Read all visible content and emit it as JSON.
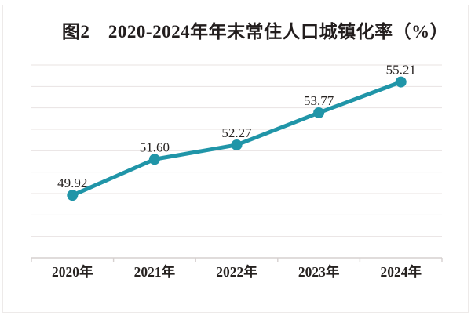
{
  "chart_data": {
    "type": "line",
    "title": "图2　2020-2024年年末常住人口城镇化率（%）",
    "categories": [
      "2020年",
      "2021年",
      "2022年",
      "2023年",
      "2024年"
    ],
    "values": [
      49.92,
      51.6,
      52.27,
      53.77,
      55.21
    ],
    "data_labels": [
      "49.92",
      "51.60",
      "52.27",
      "53.77",
      "55.21"
    ],
    "xlabel": "",
    "ylabel": "",
    "ylim": [
      47,
      56
    ],
    "y_grid_step": 1,
    "grid": "horizontal",
    "y_tick_labels_visible": false,
    "legend": false,
    "colors": {
      "line": "#2095A8",
      "marker": "#2095A8",
      "grid": "#e8e3e2",
      "axis": "#d6d0cf",
      "tick": "#d6d0cf",
      "data_label": "#262220",
      "x_label": "#262220",
      "title": "#221d1d",
      "background": "#ffffff",
      "frame": "#edeae9"
    }
  }
}
